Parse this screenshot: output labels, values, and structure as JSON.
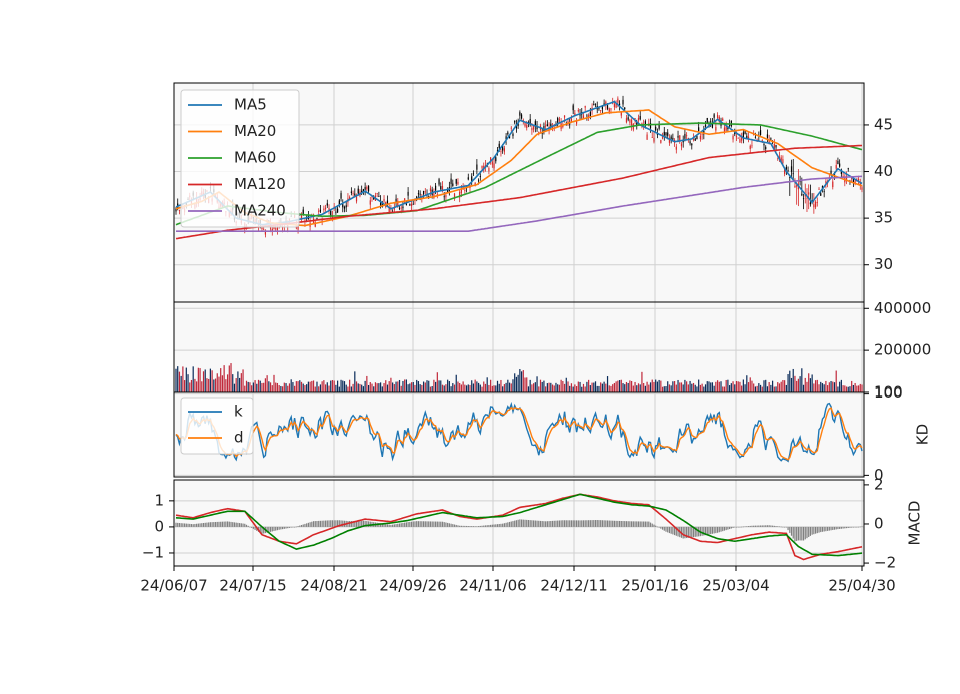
{
  "chart_data": {
    "type": "candlestick-with-indicators",
    "x_ticks": [
      "24/06/07",
      "24/07/15",
      "24/08/21",
      "24/09/26",
      "24/11/06",
      "24/12/11",
      "25/01/16",
      "25/03/04",
      "25/04/30"
    ],
    "colors": {
      "MA5": "#1f77b4",
      "MA20": "#ff7f0e",
      "MA60": "#2ca02c",
      "MA120": "#d62728",
      "MA240": "#9467bd",
      "up": "#d62728",
      "down": "#000000",
      "k": "#1f77b4",
      "d": "#ff7f0e",
      "macd_fast": "#d62728",
      "macd_slow": "#008000",
      "macd_hist": "#808080",
      "plot_bg": "#f8f8f8",
      "grid": "#d0d0d0"
    },
    "panels": [
      {
        "name": "price",
        "ylim": [
          26,
          49.5
        ],
        "yticks": [
          "30",
          "35",
          "40",
          "45"
        ],
        "legend": [
          "MA5",
          "MA20",
          "MA60",
          "MA120",
          "MA240"
        ],
        "anchors": {
          "MA5": [
            [
              0,
              36.2
            ],
            [
              20,
              37.8
            ],
            [
              35,
              35
            ],
            [
              50,
              34.3
            ],
            [
              65,
              34.6
            ],
            [
              85,
              35.4
            ],
            [
              110,
              37.9
            ],
            [
              125,
              36
            ],
            [
              150,
              37.8
            ],
            [
              170,
              38.5
            ],
            [
              185,
              41.5
            ],
            [
              200,
              45.5
            ],
            [
              215,
              44.5
            ],
            [
              232,
              46
            ],
            [
              255,
              47.5
            ],
            [
              270,
              45
            ],
            [
              290,
              43.2
            ],
            [
              300,
              43.5
            ],
            [
              315,
              45.6
            ],
            [
              330,
              43.6
            ],
            [
              346,
              43
            ],
            [
              355,
              40
            ],
            [
              370,
              36.7
            ],
            [
              385,
              40.3
            ],
            [
              400,
              38.6
            ]
          ],
          "MA20": [
            [
              0,
              36
            ],
            [
              15,
              36.8
            ],
            [
              25,
              37.8
            ],
            [
              40,
              35.6
            ],
            [
              55,
              34.5
            ],
            [
              75,
              34.2
            ],
            [
              100,
              35.2
            ],
            [
              125,
              36.6
            ],
            [
              150,
              37.3
            ],
            [
              175,
              38.6
            ],
            [
              195,
              41.2
            ],
            [
              210,
              44
            ],
            [
              230,
              45.3
            ],
            [
              250,
              46.3
            ],
            [
              275,
              46.6
            ],
            [
              290,
              44.8
            ],
            [
              310,
              44
            ],
            [
              330,
              44.5
            ],
            [
              350,
              43
            ],
            [
              370,
              40.4
            ],
            [
              400,
              38.4
            ]
          ],
          "MA60": [
            [
              0,
              34.3
            ],
            [
              30,
              36.3
            ],
            [
              60,
              35.6
            ],
            [
              85,
              35.2
            ],
            [
              110,
              35.3
            ],
            [
              140,
              35.8
            ],
            [
              180,
              38.3
            ],
            [
              215,
              41.5
            ],
            [
              245,
              44.2
            ],
            [
              270,
              45
            ],
            [
              305,
              45.2
            ],
            [
              340,
              45
            ],
            [
              370,
              43.8
            ],
            [
              400,
              42.3
            ]
          ],
          "MA120": [
            [
              0,
              32.8
            ],
            [
              30,
              33.7
            ],
            [
              60,
              34.3
            ],
            [
              100,
              35.2
            ],
            [
              150,
              36
            ],
            [
              200,
              37.2
            ],
            [
              260,
              39.3
            ],
            [
              310,
              41.5
            ],
            [
              360,
              42.5
            ],
            [
              400,
              42.8
            ]
          ],
          "MA240": [
            [
              0,
              33.6
            ],
            [
              170,
              33.6
            ],
            [
              210,
              34.7
            ],
            [
              260,
              36.3
            ],
            [
              330,
              38.3
            ],
            [
              370,
              39.2
            ],
            [
              400,
              39.5
            ]
          ]
        }
      },
      {
        "name": "volume",
        "ylim": [
          0,
          430000
        ],
        "yticks": [
          "100",
          "200000",
          "400000"
        ]
      },
      {
        "name": "KD",
        "ylabel": "KD",
        "ylim": [
          -2,
          102
        ],
        "yticks": [
          "0",
          "100"
        ],
        "legend": [
          "k",
          "d"
        ]
      },
      {
        "name": "MACD",
        "ylabel": "MACD",
        "left_ylim": [
          -1.5,
          1.8
        ],
        "left_yticks": [
          "1",
          "0",
          "−1"
        ],
        "right_ylim": [
          -2.15,
          2.25
        ],
        "right_yticks": [
          "2",
          "0",
          "−2"
        ],
        "anchors": {
          "fast": [
            [
              0,
              0.45
            ],
            [
              10,
              0.35
            ],
            [
              20,
              0.55
            ],
            [
              30,
              0.7
            ],
            [
              40,
              0.6
            ],
            [
              50,
              -0.3
            ],
            [
              60,
              -0.55
            ],
            [
              70,
              -0.65
            ],
            [
              80,
              -0.3
            ],
            [
              95,
              0.05
            ],
            [
              110,
              0.3
            ],
            [
              125,
              0.2
            ],
            [
              140,
              0.5
            ],
            [
              150,
              0.6
            ],
            [
              155,
              0.65
            ],
            [
              165,
              0.4
            ],
            [
              175,
              0.3
            ],
            [
              190,
              0.45
            ],
            [
              200,
              0.75
            ],
            [
              215,
              0.9
            ],
            [
              225,
              1.1
            ],
            [
              235,
              1.25
            ],
            [
              245,
              1.15
            ],
            [
              255,
              1.0
            ],
            [
              265,
              0.9
            ],
            [
              275,
              0.85
            ],
            [
              285,
              0.3
            ],
            [
              295,
              -0.3
            ],
            [
              305,
              -0.55
            ],
            [
              315,
              -0.6
            ],
            [
              325,
              -0.45
            ],
            [
              335,
              -0.3
            ],
            [
              345,
              -0.2
            ],
            [
              355,
              -0.25
            ],
            [
              360,
              -1.1
            ],
            [
              365,
              -1.25
            ],
            [
              375,
              -1.05
            ],
            [
              385,
              -0.95
            ],
            [
              400,
              -0.75
            ]
          ],
          "slow": [
            [
              0,
              0.35
            ],
            [
              10,
              0.3
            ],
            [
              20,
              0.45
            ],
            [
              30,
              0.6
            ],
            [
              40,
              0.6
            ],
            [
              50,
              0.0
            ],
            [
              60,
              -0.55
            ],
            [
              70,
              -0.85
            ],
            [
              80,
              -0.7
            ],
            [
              90,
              -0.45
            ],
            [
              100,
              -0.15
            ],
            [
              110,
              0.05
            ],
            [
              125,
              0.15
            ],
            [
              135,
              0.25
            ],
            [
              145,
              0.4
            ],
            [
              155,
              0.55
            ],
            [
              165,
              0.45
            ],
            [
              175,
              0.35
            ],
            [
              190,
              0.4
            ],
            [
              200,
              0.55
            ],
            [
              215,
              0.85
            ],
            [
              225,
              1.05
            ],
            [
              235,
              1.25
            ],
            [
              245,
              1.1
            ],
            [
              255,
              0.95
            ],
            [
              265,
              0.85
            ],
            [
              275,
              0.8
            ],
            [
              285,
              0.65
            ],
            [
              295,
              0.25
            ],
            [
              305,
              -0.2
            ],
            [
              315,
              -0.45
            ],
            [
              325,
              -0.55
            ],
            [
              335,
              -0.45
            ],
            [
              345,
              -0.35
            ],
            [
              355,
              -0.3
            ],
            [
              362,
              -0.75
            ],
            [
              370,
              -1.05
            ],
            [
              385,
              -1.1
            ],
            [
              400,
              -1.0
            ]
          ]
        }
      }
    ]
  }
}
